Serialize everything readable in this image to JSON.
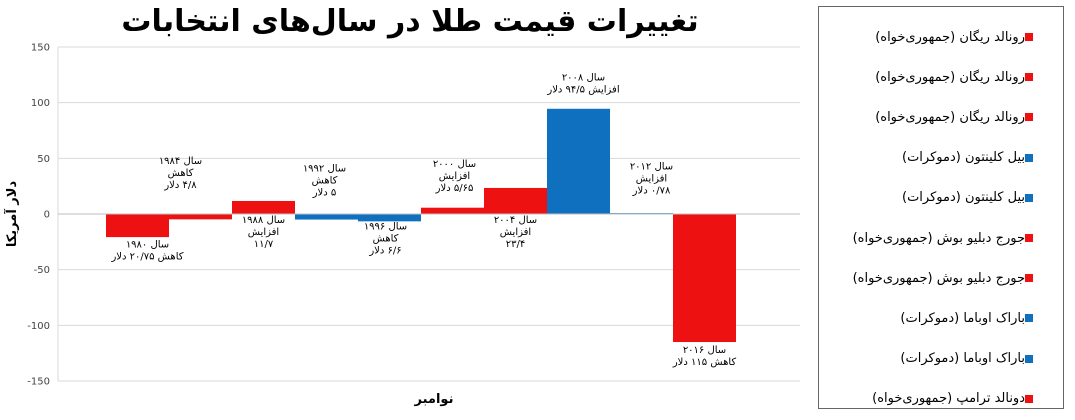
{
  "chart_data": {
    "type": "bar",
    "title": "تغییرات قیمت طلا در سال‌های انتخابات",
    "xlabel": "نوامبر",
    "ylabel": "دلار آمریکا",
    "ylim": [
      -150,
      150
    ],
    "yticks": [
      "150",
      "100",
      "50",
      "0",
      "-50",
      "-100",
      "-150"
    ],
    "grid": true,
    "legend_position": "right",
    "colors": {
      "republican": "#ee1111",
      "democrat": "#1070c0"
    },
    "bars": [
      {
        "value": -20.75,
        "party": "republican",
        "annotation": [
          "سال ۱۹۸۰",
          "کاهش ۲۰/۷۵ دلار"
        ]
      },
      {
        "value": -4.8,
        "party": "republican",
        "annotation": [
          "سال ۱۹۸۴",
          "کاهش",
          "۴/۸ دلار"
        ]
      },
      {
        "value": 11.7,
        "party": "republican",
        "annotation": [
          "سال ۱۹۸۸",
          "افزایش",
          "۱۱/۷"
        ]
      },
      {
        "value": -5,
        "party": "democrat",
        "annotation": [
          "سال ۱۹۹۲",
          "کاهش",
          "۵ دلار"
        ]
      },
      {
        "value": -6.6,
        "party": "democrat",
        "annotation": [
          "سال ۱۹۹۶",
          "کاهش",
          "۶/۶ دلار"
        ]
      },
      {
        "value": 5.65,
        "party": "republican",
        "annotation": [
          "سال ۲۰۰۰",
          "افزایش",
          "۵/۶۵ دلار"
        ]
      },
      {
        "value": 23.4,
        "party": "republican",
        "annotation": [
          "سال ۲۰۰۴",
          "افزایش",
          "۲۳/۴"
        ]
      },
      {
        "value": 94.5,
        "party": "democrat",
        "annotation": [
          "سال ۲۰۰۸",
          "افزایش ۹۴/۵ دلار"
        ]
      },
      {
        "value": 0.78,
        "party": "democrat",
        "annotation": [
          "سال ۲۰۱۲",
          "افزایش",
          "۰/۷۸ دلار"
        ]
      },
      {
        "value": -115,
        "party": "republican",
        "annotation": [
          "سال ۲۰۱۶",
          "کاهش ۱۱۵ دلار"
        ]
      }
    ],
    "legend": [
      {
        "label": "رونالد ریگان (جمهوری‌خواه)",
        "party": "republican"
      },
      {
        "label": "رونالد ریگان (جمهوری‌خواه)",
        "party": "republican"
      },
      {
        "label": "رونالد ریگان (جمهوری‌خواه)",
        "party": "republican"
      },
      {
        "label": "بیل کلینتون (دموکرات)",
        "party": "democrat"
      },
      {
        "label": "بیل کلینتون (دموکرات)",
        "party": "democrat"
      },
      {
        "label": "جورج دبلیو بوش (جمهوری‌خواه)",
        "party": "republican"
      },
      {
        "label": "جورج دبلیو بوش (جمهوری‌خواه)",
        "party": "republican"
      },
      {
        "label": "باراک اوباما (دموکرات)",
        "party": "democrat"
      },
      {
        "label": "باراک اوباما (دموکرات)",
        "party": "democrat"
      },
      {
        "label": "دونالد ترامپ (جمهوری‌خواه)",
        "party": "republican"
      }
    ]
  }
}
